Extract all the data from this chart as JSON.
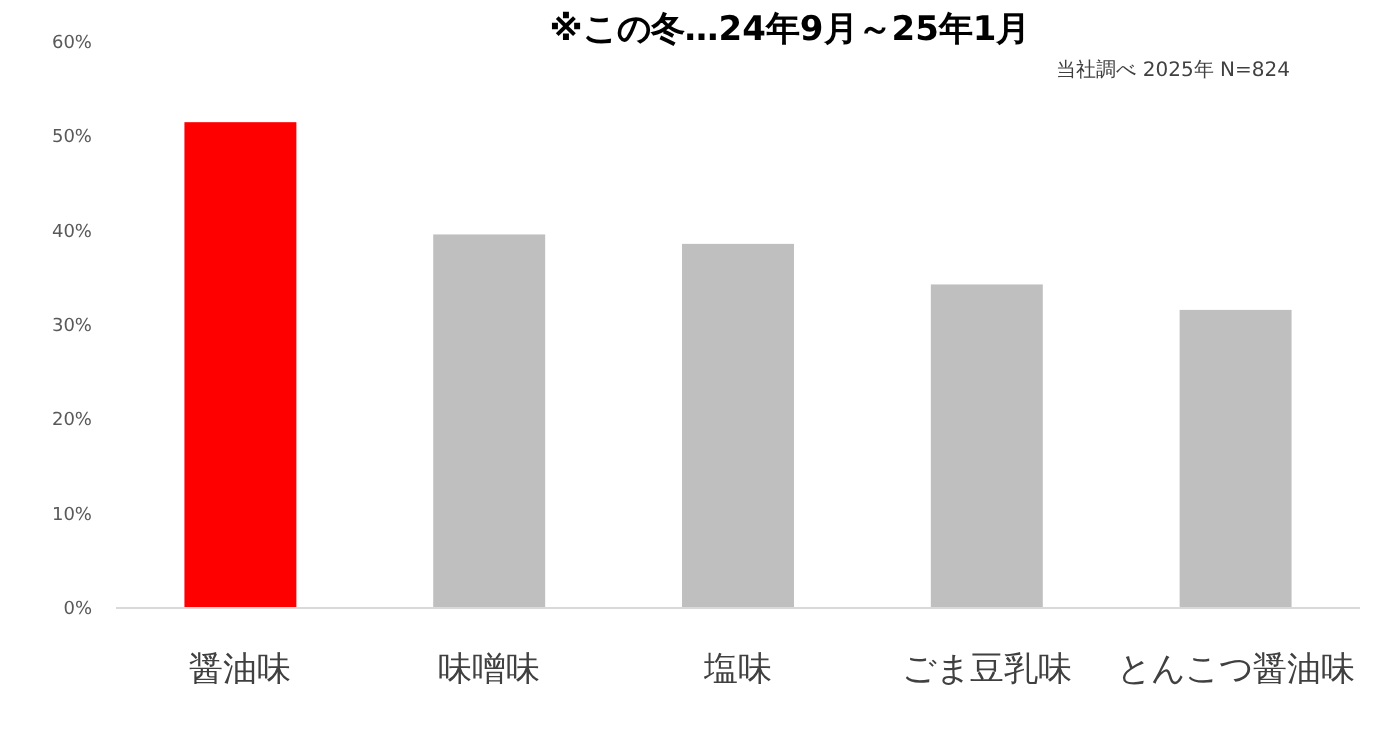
{
  "chart_data": {
    "type": "bar",
    "title": "※この冬…24年9月～25年1月",
    "annotations": [
      "当社調べ  2025年  N=824"
    ],
    "categories": [
      "醤油味",
      "味噌味",
      "塩味",
      "ごま豆乳味",
      "とんこつ醤油味"
    ],
    "values": [
      51.5,
      39.6,
      38.6,
      34.3,
      31.6
    ],
    "colors": [
      "#ff0000",
      "#bfbfbf",
      "#bfbfbf",
      "#bfbfbf",
      "#bfbfbf"
    ],
    "ylim": [
      0,
      60
    ],
    "yticks": [
      {
        "value": 0,
        "label": "0%"
      },
      {
        "value": 10,
        "label": "10%"
      },
      {
        "value": 20,
        "label": "20%"
      },
      {
        "value": 30,
        "label": "30%"
      },
      {
        "value": 40,
        "label": "40%"
      },
      {
        "value": 50,
        "label": "50%"
      },
      {
        "value": 60,
        "label": "60%"
      }
    ],
    "grid": false
  }
}
